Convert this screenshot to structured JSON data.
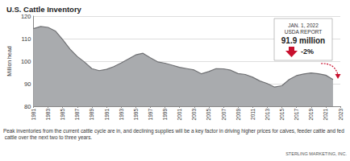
{
  "chart_data": {
    "type": "area",
    "title": "U.S. Cattle Inventory",
    "y_label": "Million head",
    "x": [
      1981,
      1982,
      1983,
      1984,
      1985,
      1986,
      1987,
      1988,
      1989,
      1990,
      1991,
      1992,
      1993,
      1994,
      1995,
      1996,
      1997,
      1998,
      1999,
      2000,
      2001,
      2002,
      2003,
      2004,
      2005,
      2006,
      2007,
      2008,
      2009,
      2010,
      2011,
      2012,
      2013,
      2014,
      2015,
      2016,
      2017,
      2018,
      2019,
      2020,
      2021,
      2022
    ],
    "values": [
      114.4,
      115.4,
      115.0,
      113.4,
      109.6,
      105.4,
      102.1,
      99.6,
      96.7,
      95.8,
      96.4,
      97.6,
      99.2,
      101.0,
      102.8,
      103.5,
      101.5,
      99.7,
      99.1,
      98.2,
      97.3,
      96.7,
      96.1,
      94.4,
      95.4,
      96.7,
      96.6,
      96.0,
      94.5,
      94.1,
      92.9,
      91.2,
      90.1,
      88.5,
      89.1,
      91.9,
      93.6,
      94.3,
      94.8,
      94.4,
      93.8,
      91.9
    ],
    "color": "#a9abae",
    "xlim": [
      1981,
      2023
    ],
    "xticks": [
      1981,
      1983,
      1985,
      1987,
      1989,
      1991,
      1993,
      1995,
      1997,
      1999,
      2001,
      2003,
      2005,
      2007,
      2009,
      2011,
      2013,
      2015,
      2017,
      2019,
      2021,
      2023
    ],
    "ylim": [
      80,
      120
    ],
    "yticks": [
      80,
      90,
      100,
      110,
      120
    ],
    "grid": true,
    "annotations": [
      "JAN. 1, 2022",
      "USDA REPORT",
      "91.9 million",
      "-2%"
    ],
    "caption": "Peak inventories from the current cattle cycle are in, and declining supplies will be a key factor in driving higher prices for calves, feeder cattle and fed cattle over the next two to three years.",
    "source": "STERLING MARKETING, INC."
  }
}
